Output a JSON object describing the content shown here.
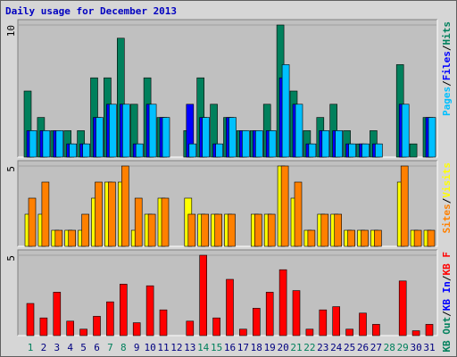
{
  "chart_data": [
    {
      "type": "bar",
      "title": "Daily usage for December 2013",
      "ylim": [
        0,
        10
      ],
      "yticks": [
        10
      ],
      "legend_separator": "/",
      "series": [
        {
          "name": "Hits",
          "color": "#00805c",
          "values": [
            5,
            3,
            2,
            2,
            2,
            6,
            6,
            9,
            4,
            6,
            3,
            0,
            2,
            6,
            4,
            3,
            2,
            2,
            4,
            10,
            5,
            2,
            3,
            4,
            2,
            1,
            2,
            0,
            7,
            1,
            3
          ]
        },
        {
          "name": "Files",
          "color": "#0000ff",
          "values": [
            2,
            2,
            2,
            1,
            1,
            3,
            4,
            4,
            1,
            4,
            3,
            0,
            4,
            3,
            1,
            3,
            2,
            2,
            2,
            6,
            4,
            1,
            2,
            2,
            1,
            1,
            1,
            0,
            4,
            0,
            3
          ]
        },
        {
          "name": "Pages",
          "color": "#00c0ff",
          "values": [
            2,
            2,
            2,
            1,
            1,
            3,
            4,
            4,
            1,
            4,
            3,
            0,
            1,
            3,
            1,
            3,
            2,
            2,
            2,
            7,
            4,
            1,
            2,
            2,
            1,
            1,
            1,
            0,
            4,
            0,
            3
          ]
        }
      ]
    },
    {
      "type": "bar",
      "ylim": [
        0,
        5
      ],
      "yticks": [
        5
      ],
      "legend_separator": "/",
      "series": [
        {
          "name": "Visits",
          "color": "#ffff00",
          "values": [
            2,
            2,
            1,
            1,
            1,
            3,
            4,
            4,
            1,
            2,
            3,
            0,
            3,
            2,
            2,
            2,
            0,
            2,
            2,
            5,
            3,
            1,
            2,
            2,
            1,
            1,
            1,
            0,
            4,
            1,
            1
          ]
        },
        {
          "name": "Sites",
          "color": "#ff8000",
          "values": [
            3,
            4,
            1,
            1,
            2,
            4,
            4,
            5,
            3,
            2,
            3,
            0,
            2,
            2,
            2,
            2,
            0,
            2,
            2,
            5,
            4,
            1,
            2,
            2,
            1,
            1,
            1,
            0,
            5,
            1,
            1
          ]
        }
      ]
    },
    {
      "type": "bar",
      "ylim": [
        0,
        5
      ],
      "yticks": [
        5
      ],
      "legend_separator": "/",
      "categories": [
        "1",
        "2",
        "3",
        "4",
        "5",
        "6",
        "7",
        "8",
        "9",
        "10",
        "11",
        "12",
        "13",
        "14",
        "15",
        "16",
        "17",
        "18",
        "19",
        "20",
        "21",
        "22",
        "23",
        "24",
        "25",
        "26",
        "27",
        "28",
        "29",
        "30",
        "31"
      ],
      "category_colors": [
        "#00805c",
        "#000080",
        "#000080",
        "#000080",
        "#000080",
        "#000080",
        "#00805c",
        "#00805c",
        "#000080",
        "#000080",
        "#000080",
        "#000080",
        "#000080",
        "#00805c",
        "#00805c",
        "#000080",
        "#000080",
        "#000080",
        "#000080",
        "#000080",
        "#00805c",
        "#00805c",
        "#000080",
        "#000080",
        "#000080",
        "#000080",
        "#000080",
        "#00805c",
        "#00805c",
        "#000080",
        "#000080"
      ],
      "series": [
        {
          "name": "KB F",
          "color": "#ff0000",
          "values": [
            2.0,
            1.1,
            2.7,
            0.9,
            0.4,
            1.2,
            2.1,
            3.2,
            0.8,
            3.1,
            1.6,
            0,
            0.9,
            5.0,
            1.1,
            3.5,
            0.4,
            1.7,
            2.7,
            4.1,
            2.8,
            0.4,
            1.6,
            1.8,
            0.4,
            1.4,
            0.7,
            0,
            3.4,
            0.3,
            0.7
          ]
        },
        {
          "name": "KB In",
          "color": "#0000ff"
        },
        {
          "name": "KB Out",
          "color": "#00805c"
        }
      ]
    }
  ]
}
